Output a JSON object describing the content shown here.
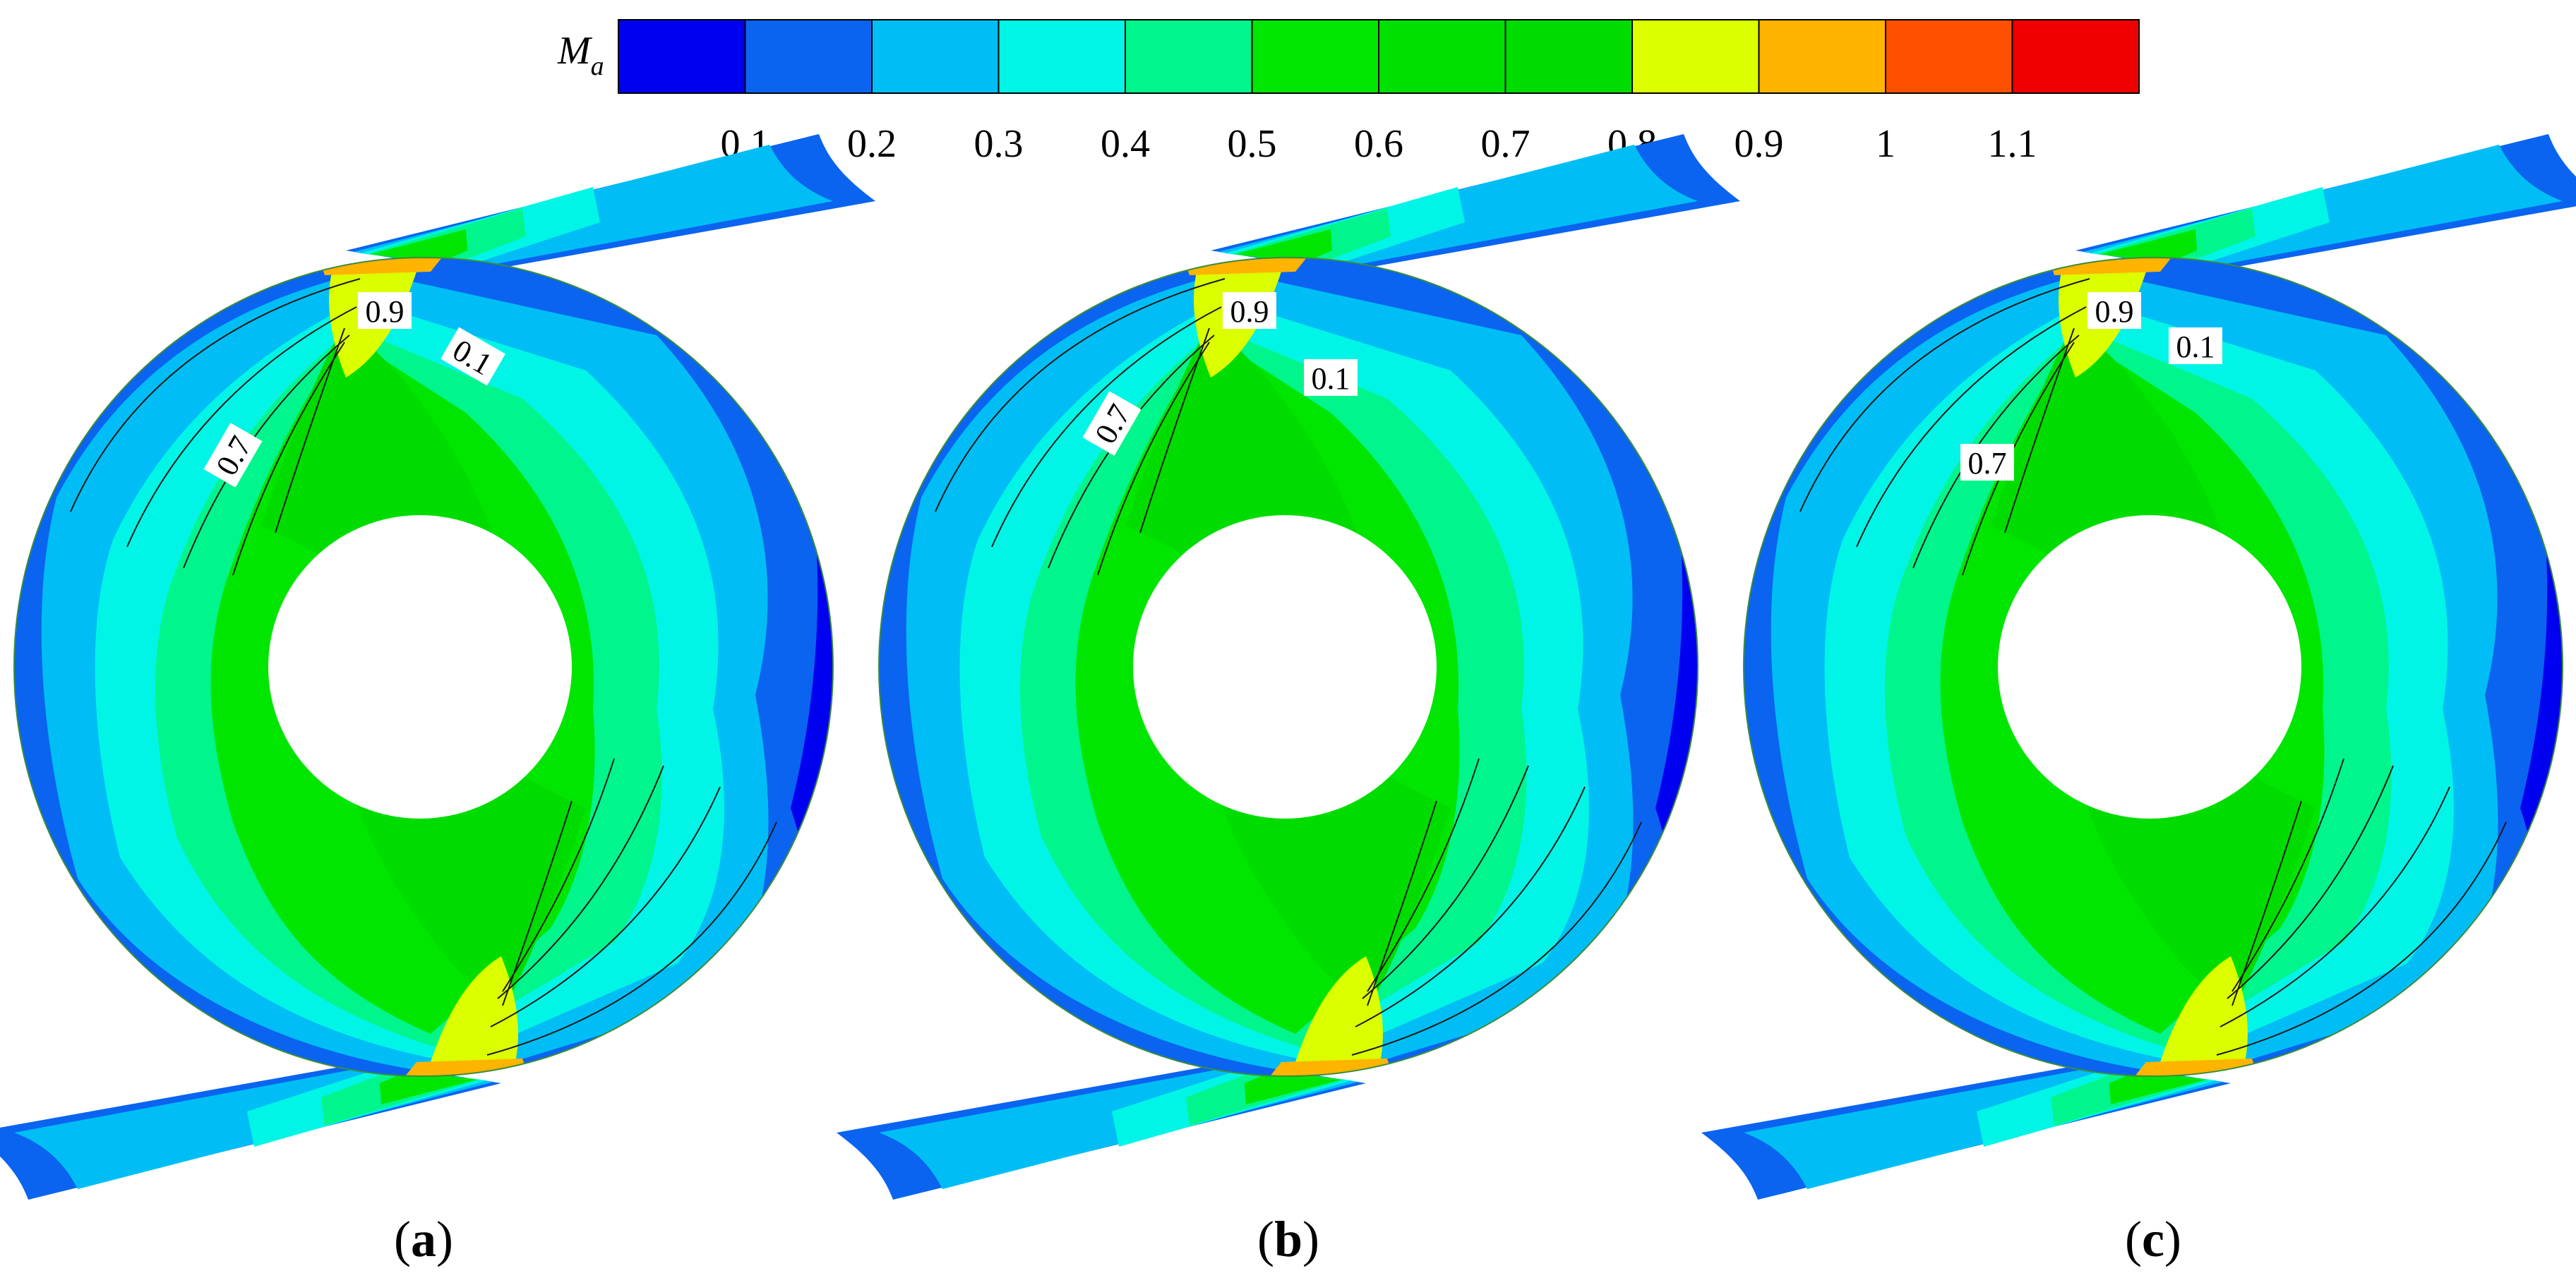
{
  "colorbar": {
    "label": "Ma",
    "label_main": "M",
    "label_sub": "a",
    "colors": [
      "#0000f0",
      "#0a64f0",
      "#00bef5",
      "#00f5e6",
      "#00f58c",
      "#00e600",
      "#00e000",
      "#00dc00",
      "#dcff00",
      "#ffb400",
      "#ff5000",
      "#f00000"
    ],
    "ticks": [
      "0.1",
      "0.2",
      "0.3",
      "0.4",
      "0.5",
      "0.6",
      "0.7",
      "0.8",
      "0.9",
      "1",
      "1.1"
    ]
  },
  "panels": [
    {
      "caption": "(a)",
      "caption_open": "(",
      "caption_letter": "a",
      "caption_close": ")",
      "labels": [
        {
          "text": "0.9",
          "color_value": 0.9
        },
        {
          "text": "0.1",
          "color_value": 0.1
        },
        {
          "text": "0.7",
          "color_value": 0.7
        }
      ]
    },
    {
      "caption": "(b)",
      "caption_open": "(",
      "caption_letter": "b",
      "caption_close": ")",
      "labels": [
        {
          "text": "0.9",
          "color_value": 0.9
        },
        {
          "text": "0.1",
          "color_value": 0.1
        },
        {
          "text": "0.7",
          "color_value": 0.7
        }
      ]
    },
    {
      "caption": "(c)",
      "caption_open": "(",
      "caption_letter": "c",
      "caption_close": ")",
      "labels": [
        {
          "text": "0.9",
          "color_value": 0.9
        },
        {
          "text": "0.1",
          "color_value": 0.1
        },
        {
          "text": "0.7",
          "color_value": 0.7
        }
      ]
    }
  ]
}
